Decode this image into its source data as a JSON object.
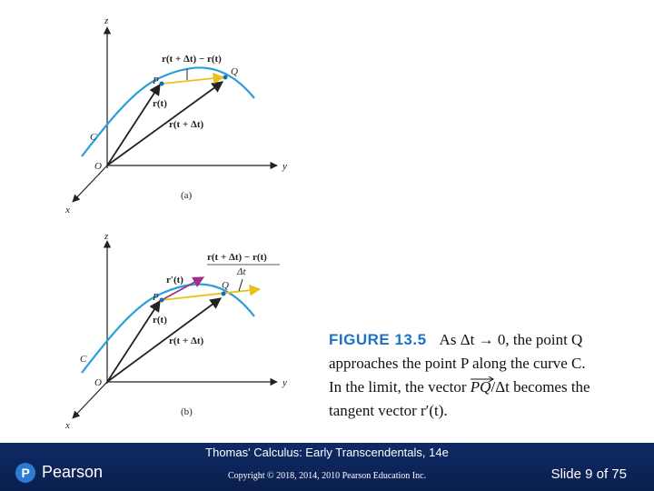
{
  "figure_a": {
    "axis_z": "z",
    "axis_y": "y",
    "axis_x": "x",
    "origin": "O",
    "curve": "C",
    "point_p": "P",
    "point_q": "Q",
    "vec_rt": "r(t)",
    "vec_rtdt": "r(t + Δt)",
    "vec_diff": "r(t + Δt) − r(t)",
    "panel": "(a)"
  },
  "figure_b": {
    "axis_z": "z",
    "axis_y": "y",
    "axis_x": "x",
    "origin": "O",
    "curve": "C",
    "point_p": "P",
    "point_q": "Q",
    "vec_rt": "r(t)",
    "vec_rtdt": "r(t + Δt)",
    "vec_tangent": "r′(t)",
    "vec_diff_num": "r(t + Δt) − r(t)",
    "vec_diff_den": "Δt",
    "panel": "(b)"
  },
  "caption": {
    "label": "FIGURE 13.5",
    "line1": "As Δt → 0, the point Q",
    "line2": "approaches the point P along the curve C.",
    "line3_pre": "In the limit, the vector ",
    "line3_vec": "PQ",
    "line3_post": "/Δt becomes the",
    "line4": "tangent vector r′(t)."
  },
  "footer": {
    "title": "Thomas' Calculus: Early Transcendentals, 14e",
    "copyright": "Copyright © 2018, 2014, 2010 Pearson Education Inc.",
    "brand": "Pearson",
    "slide": "Slide 9 of 75"
  },
  "colors": {
    "curve": "#2a9fd8",
    "secant": "#e8c21a",
    "tangent": "#a0308a",
    "footer_bg": "#0e2a66",
    "caption_label": "#1a73c8"
  }
}
